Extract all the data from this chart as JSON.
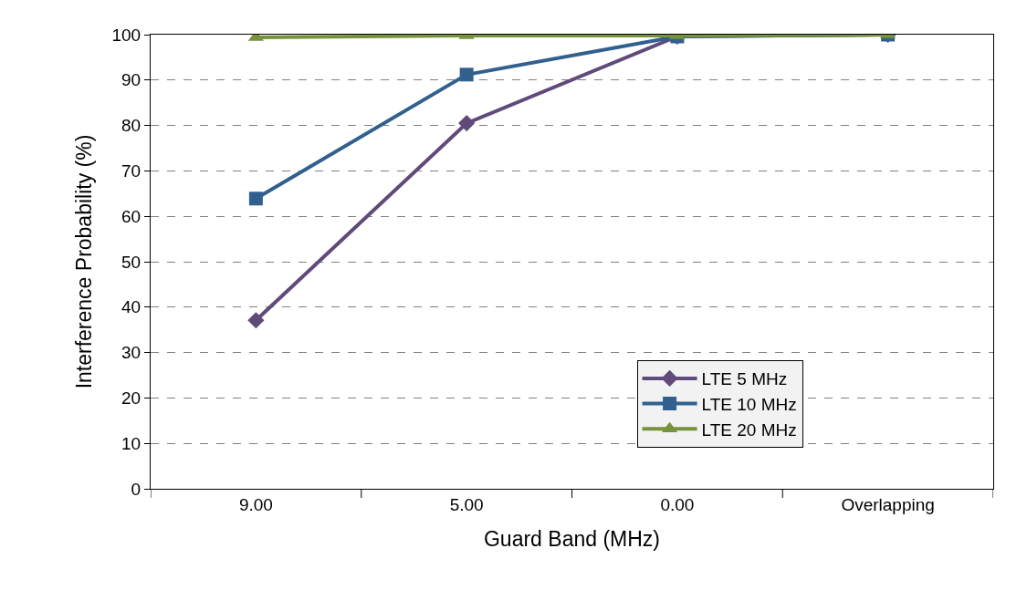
{
  "chart_data": {
    "type": "line",
    "xlabel": "Guard Band (MHz)",
    "ylabel": "Interference Probability (%)",
    "categories": [
      "9.00",
      "5.00",
      "0.00",
      "Overlapping"
    ],
    "series": [
      {
        "name": "LTE 5 MHz",
        "color": "#604a7b",
        "marker": "diamond",
        "values": [
          37.1,
          80.5,
          99.6,
          100
        ]
      },
      {
        "name": "LTE 10 MHz",
        "color": "#31608f",
        "marker": "square",
        "values": [
          63.9,
          91.2,
          99.6,
          100
        ]
      },
      {
        "name": "LTE 20 MHz",
        "color": "#76923c",
        "marker": "triangle",
        "values": [
          99.4,
          99.8,
          99.8,
          100
        ]
      }
    ],
    "ylim": [
      0,
      100
    ],
    "yticks": [
      0,
      10,
      20,
      30,
      40,
      50,
      60,
      70,
      80,
      90,
      100
    ],
    "grid": "y",
    "legend": "bottom right",
    "line_style": "solid"
  }
}
